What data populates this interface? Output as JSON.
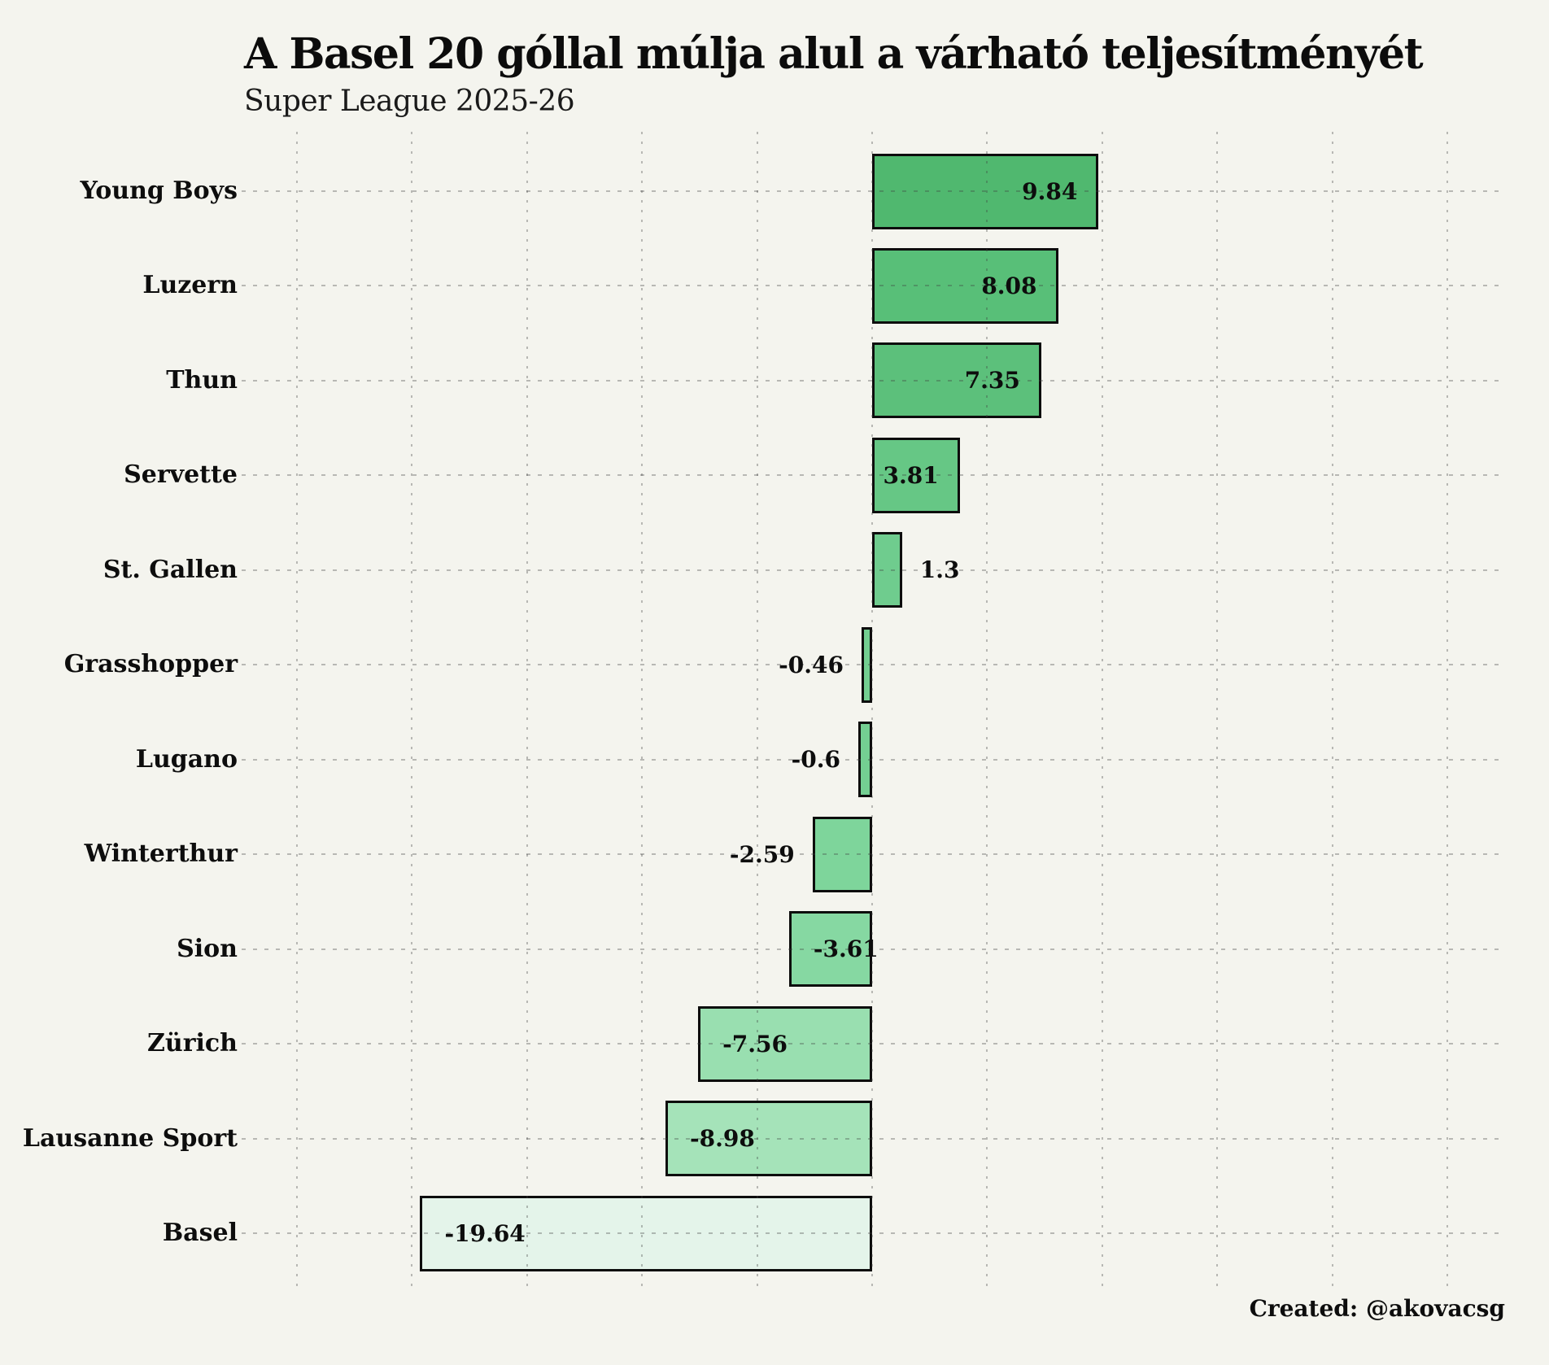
{
  "page": {
    "background": "#f4f4ee"
  },
  "chart_data": {
    "type": "bar",
    "orientation": "horizontal",
    "title": "A Basel 20 góllal múlja alul a várható teljesítményét",
    "subtitle": "Super League 2025-26",
    "categories": [
      "Young Boys",
      "Luzern",
      "Thun",
      "Servette",
      "St. Gallen",
      "Grasshopper",
      "Lugano",
      "Winterthur",
      "Sion",
      "Zürich",
      "Lausanne Sport",
      "Basel"
    ],
    "values": [
      9.84,
      8.08,
      7.35,
      3.81,
      1.3,
      -0.46,
      -0.6,
      -2.59,
      -3.61,
      -7.56,
      -8.98,
      -19.64
    ],
    "value_labels": [
      "9.84",
      "8.08",
      "7.35",
      "3.81",
      "1.3",
      "-0.46",
      "-0.6",
      "-2.59",
      "-3.61",
      "-7.56",
      "-8.98",
      "-19.64"
    ],
    "bar_colors": [
      "#50b86f",
      "#58bf78",
      "#5cc07b",
      "#66c785",
      "#6fcc8e",
      "#73cf91",
      "#74cf92",
      "#7ed59b",
      "#86d8a2",
      "#99dfb0",
      "#a5e3b9",
      "#e4f4ea"
    ],
    "bar_border_color": "#0d0d0d",
    "grid": true,
    "gridline_values": [
      -25,
      -20,
      -15,
      -10,
      -5,
      0,
      5,
      10,
      15,
      20,
      25
    ],
    "xlim": [
      -27.4,
      27.4
    ],
    "xlabel": "",
    "ylabel": "",
    "legend": "none"
  },
  "footer": {
    "text": "Created: @akovacsg"
  },
  "colors": {
    "text": "#0d0d0d",
    "grid": "#b4b4b4",
    "background": "#f4f4ee"
  }
}
